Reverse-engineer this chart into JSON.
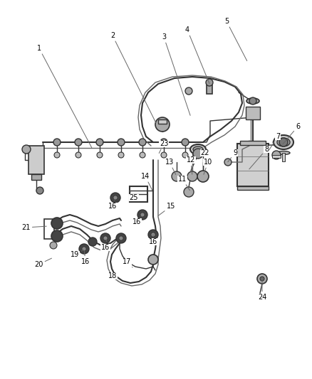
{
  "bg_color": "#ffffff",
  "line_color": "#666666",
  "dark_color": "#333333",
  "figsize": [
    4.38,
    5.33
  ],
  "dpi": 100,
  "labels": [
    [
      "1",
      55,
      68,
      130,
      210
    ],
    [
      "2",
      158,
      50,
      220,
      175
    ],
    [
      "3",
      230,
      52,
      268,
      165
    ],
    [
      "4",
      263,
      42,
      295,
      120
    ],
    [
      "5",
      318,
      30,
      348,
      88
    ],
    [
      "6",
      418,
      178,
      395,
      205
    ],
    [
      "7",
      390,
      192,
      375,
      215
    ],
    [
      "8",
      374,
      210,
      348,
      240
    ],
    [
      "9",
      330,
      215,
      318,
      230
    ],
    [
      "10",
      292,
      228,
      285,
      248
    ],
    [
      "11",
      256,
      252,
      268,
      270
    ],
    [
      "12",
      268,
      225,
      270,
      248
    ],
    [
      "13",
      238,
      228,
      248,
      248
    ],
    [
      "14",
      204,
      248,
      215,
      270
    ],
    [
      "15",
      240,
      290,
      220,
      305
    ],
    [
      "16",
      158,
      290,
      162,
      278
    ],
    [
      "16",
      192,
      312,
      200,
      302
    ],
    [
      "16",
      215,
      340,
      215,
      330
    ],
    [
      "16",
      148,
      348,
      150,
      335
    ],
    [
      "16",
      120,
      368,
      118,
      350
    ],
    [
      "17",
      178,
      368,
      188,
      378
    ],
    [
      "18",
      158,
      388,
      168,
      398
    ],
    [
      "19",
      105,
      358,
      120,
      350
    ],
    [
      "20",
      54,
      372,
      75,
      362
    ],
    [
      "21",
      36,
      320,
      68,
      318
    ],
    [
      "22",
      288,
      215,
      278,
      225
    ],
    [
      "23",
      230,
      202,
      222,
      218
    ],
    [
      "24",
      368,
      418,
      368,
      390
    ],
    [
      "25",
      188,
      278,
      182,
      268
    ]
  ]
}
